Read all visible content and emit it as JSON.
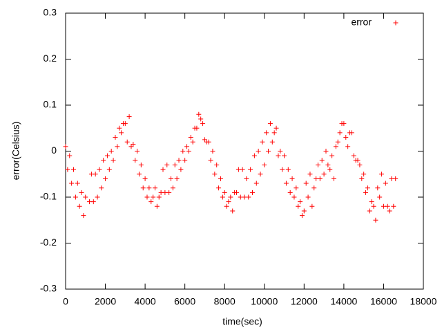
{
  "chart_data": {
    "type": "scatter",
    "xlabel": "time(sec)",
    "ylabel": "error(Celsius)",
    "xlim": [
      0,
      18000
    ],
    "xticks": [
      0,
      2000,
      4000,
      6000,
      8000,
      10000,
      12000,
      14000,
      16000,
      18000
    ],
    "ylim": [
      -0.3,
      0.3
    ],
    "yticks": [
      -0.3,
      -0.2,
      -0.1,
      0,
      0.1,
      0.2,
      0.3
    ],
    "legend": "top-right",
    "x": [
      0,
      200,
      400,
      600,
      800,
      1000,
      1200,
      1400,
      1600,
      1800,
      2000,
      2200,
      2400,
      2600,
      2800,
      3000,
      3200,
      3400,
      3600,
      3800,
      4000,
      4200,
      4400,
      4600,
      4800,
      5000,
      5200,
      5400,
      5600,
      5800,
      6000,
      6200,
      6400,
      6600,
      6800,
      7000,
      7200,
      7400,
      7600,
      7800,
      8000,
      8200,
      8400,
      8600,
      8800,
      9000,
      9200,
      9400,
      9600,
      9800,
      10000,
      10200,
      10400,
      10600,
      10800,
      11000,
      11200,
      11400,
      11600,
      11800,
      12000,
      12200,
      12400,
      12600,
      12800,
      13000,
      13200,
      13400,
      13600,
      13800,
      14000,
      14200,
      14400,
      14600,
      14800,
      15000,
      15200,
      15400,
      15600,
      15800,
      16000,
      16200,
      16400,
      16600,
      100,
      300,
      500,
      700,
      900,
      1300,
      1500,
      1700,
      1900,
      2100,
      2300,
      2500,
      2700,
      2900,
      3100,
      3300,
      3500,
      3700,
      3900,
      4100,
      4300,
      4500,
      4700,
      4900,
      5100,
      5300,
      5500,
      5700,
      5900,
      6100,
      6300,
      6500,
      6700,
      6900,
      7100,
      7300,
      7500,
      7700,
      7900,
      8100,
      8300,
      8500,
      8700,
      8900,
      9100,
      9300,
      9500,
      9700,
      9900,
      10100,
      10300,
      10500,
      10700,
      10900,
      11100,
      11300,
      11500,
      11700,
      11900,
      12100,
      12300,
      12500,
      12700,
      12900,
      13100,
      13300,
      13500,
      13700,
      13900,
      14100,
      14300,
      14500,
      14700,
      14900,
      15100,
      15300,
      15500,
      15700,
      15900,
      16100,
      16300,
      16500
    ],
    "series": [
      {
        "name": "error",
        "color": "#ff0000",
        "values": [
          0.01,
          -0.01,
          -0.04,
          -0.07,
          -0.09,
          -0.1,
          -0.11,
          -0.11,
          -0.1,
          -0.08,
          -0.06,
          -0.04,
          -0.02,
          0.01,
          0.04,
          0.06,
          0.075,
          0.015,
          0.0,
          -0.03,
          -0.06,
          -0.08,
          -0.1,
          -0.12,
          -0.09,
          -0.09,
          -0.09,
          -0.08,
          -0.06,
          -0.04,
          -0.02,
          0.0,
          0.02,
          0.05,
          0.07,
          0.025,
          0.02,
          0.0,
          -0.03,
          -0.06,
          -0.09,
          -0.11,
          -0.13,
          -0.09,
          -0.1,
          -0.1,
          -0.1,
          -0.09,
          -0.07,
          -0.05,
          -0.03,
          0.0,
          0.02,
          0.05,
          0.0,
          -0.01,
          -0.04,
          -0.06,
          -0.08,
          -0.11,
          -0.13,
          -0.1,
          -0.12,
          -0.06,
          -0.06,
          -0.05,
          -0.03,
          -0.01,
          0.01,
          0.04,
          0.06,
          0.01,
          0.04,
          -0.02,
          -0.03,
          -0.05,
          -0.08,
          -0.11,
          -0.15,
          -0.1,
          -0.12,
          -0.12,
          -0.06,
          -0.06,
          -0.04,
          -0.07,
          -0.1,
          -0.12,
          -0.14,
          -0.05,
          -0.05,
          -0.04,
          -0.02,
          -0.01,
          0.0,
          0.03,
          0.05,
          0.06,
          0.02,
          0.01,
          -0.02,
          -0.05,
          -0.08,
          -0.1,
          -0.11,
          -0.08,
          -0.1,
          -0.04,
          -0.03,
          -0.06,
          -0.03,
          -0.02,
          0.0,
          0.01,
          0.03,
          0.05,
          0.08,
          0.06,
          0.02,
          -0.02,
          -0.05,
          -0.08,
          -0.1,
          -0.12,
          -0.1,
          -0.09,
          -0.04,
          -0.04,
          -0.06,
          -0.04,
          -0.01,
          0.0,
          0.02,
          0.04,
          0.06,
          0.04,
          -0.01,
          -0.04,
          -0.07,
          -0.09,
          -0.1,
          -0.12,
          -0.14,
          -0.07,
          -0.05,
          -0.08,
          -0.03,
          -0.02,
          0.0,
          -0.04,
          -0.06,
          0.02,
          0.06,
          0.03,
          0.04,
          -0.01,
          -0.02,
          -0.06,
          -0.09,
          -0.13,
          -0.12,
          -0.08,
          -0.05,
          -0.07,
          -0.13,
          -0.12
        ]
      }
    ]
  }
}
